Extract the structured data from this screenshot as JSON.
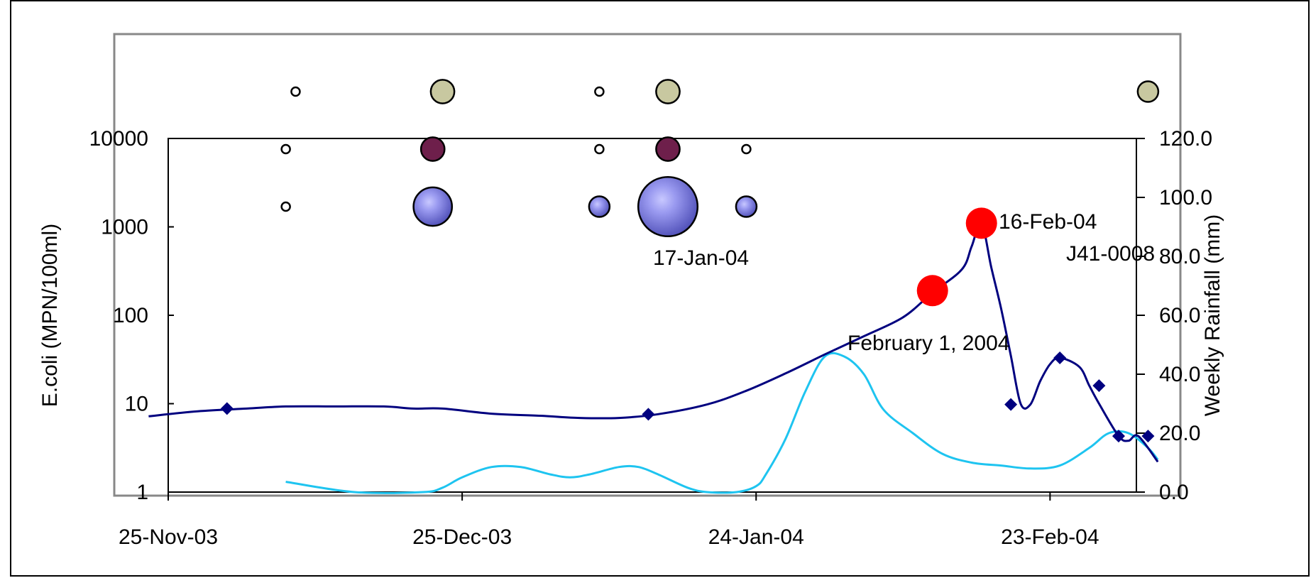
{
  "title": "",
  "chart_data": {
    "type": "line",
    "x_axis": {
      "tick_labels": [
        "25-Nov-03",
        "25-Dec-03",
        "24-Jan-04",
        "23-Feb-04"
      ],
      "range": [
        "2003-11-25",
        "2004-03-05"
      ]
    },
    "y_left": {
      "label": "E.coli (MPN/100ml)",
      "scale": "log",
      "range": [
        1,
        10000
      ],
      "tick_labels": [
        "1",
        "10",
        "100",
        "1000",
        "10000"
      ],
      "ticks": [
        1,
        10,
        100,
        1000,
        10000
      ]
    },
    "y_right": {
      "label": "Weekly Rainfall (mm)",
      "range": [
        0,
        120
      ],
      "tick_labels": [
        "0.0",
        "20.0",
        "40.0",
        "60.0",
        "80.0",
        "100.0",
        "120.0"
      ],
      "ticks": [
        0,
        20,
        40,
        60,
        80,
        100,
        120
      ]
    },
    "series": [
      {
        "name": "",
        "axis": "left",
        "color": "#00007f",
        "line": [
          [
            "2003-11-23",
            7.2
          ],
          [
            "2003-11-28",
            8.2
          ],
          [
            "2003-12-03",
            8.8
          ],
          [
            "2003-12-07",
            9.3
          ],
          [
            "2003-12-12",
            9.3
          ],
          [
            "2003-12-17",
            9.3
          ],
          [
            "2003-12-20",
            8.8
          ],
          [
            "2003-12-23",
            8.8
          ],
          [
            "2003-12-28",
            7.7
          ],
          [
            "2004-01-02",
            7.3
          ],
          [
            "2004-01-06",
            6.9
          ],
          [
            "2004-01-10",
            6.9
          ],
          [
            "2004-01-14",
            7.6
          ],
          [
            "2004-01-19",
            9.8
          ],
          [
            "2004-01-23",
            14
          ],
          [
            "2004-01-27",
            22
          ],
          [
            "2004-01-31",
            36
          ],
          [
            "2004-02-04",
            58
          ],
          [
            "2004-02-08",
            95
          ],
          [
            "2004-02-11",
            180
          ],
          [
            "2004-02-14",
            330
          ],
          [
            "2004-02-15",
            600
          ],
          [
            "2004-02-16",
            1100
          ],
          [
            "2004-02-17",
            350
          ],
          [
            "2004-02-18",
            120
          ],
          [
            "2004-02-19",
            35
          ],
          [
            "2004-02-20",
            10
          ],
          [
            "2004-02-21",
            9.8
          ],
          [
            "2004-02-22",
            18
          ],
          [
            "2004-02-23",
            28
          ],
          [
            "2004-02-24",
            33
          ],
          [
            "2004-02-26",
            26
          ],
          [
            "2004-02-27",
            16
          ],
          [
            "2004-02-28",
            10
          ],
          [
            "2004-03-01",
            4.3
          ],
          [
            "2004-03-02",
            3.8
          ],
          [
            "2004-03-03",
            4.3
          ],
          [
            "2004-03-05",
            2.2
          ]
        ],
        "markers": [
          [
            "2003-12-01",
            8.8
          ],
          [
            "2004-01-13",
            7.6
          ],
          [
            "2004-02-19",
            9.8
          ],
          [
            "2004-02-24",
            33
          ],
          [
            "2004-02-28",
            16
          ],
          [
            "2004-03-01",
            4.3
          ],
          [
            "2004-03-04",
            4.3
          ]
        ]
      },
      {
        "name": "",
        "axis": "right",
        "color": "#1ec4f0",
        "line": [
          [
            "2003-12-07",
            3.5
          ],
          [
            "2003-12-14",
            0
          ],
          [
            "2003-12-21",
            0
          ],
          [
            "2003-12-23",
            1.5
          ],
          [
            "2003-12-25",
            5
          ],
          [
            "2003-12-28",
            8.5
          ],
          [
            "2003-12-31",
            8.5
          ],
          [
            "2004-01-03",
            6
          ],
          [
            "2004-01-05",
            5
          ],
          [
            "2004-01-07",
            6
          ],
          [
            "2004-01-10",
            8.5
          ],
          [
            "2004-01-12",
            8.5
          ],
          [
            "2004-01-14",
            6
          ],
          [
            "2004-01-17",
            1.5
          ],
          [
            "2004-01-19",
            0
          ],
          [
            "2004-01-22",
            0
          ],
          [
            "2004-01-24",
            2
          ],
          [
            "2004-01-25",
            6
          ],
          [
            "2004-01-27",
            18
          ],
          [
            "2004-01-29",
            34
          ],
          [
            "2004-01-31",
            46
          ],
          [
            "2004-02-02",
            46
          ],
          [
            "2004-02-04",
            40
          ],
          [
            "2004-02-06",
            28
          ],
          [
            "2004-02-09",
            20
          ],
          [
            "2004-02-12",
            13
          ],
          [
            "2004-02-15",
            10
          ],
          [
            "2004-02-18",
            9
          ],
          [
            "2004-02-21",
            8
          ],
          [
            "2004-02-24",
            9
          ],
          [
            "2004-02-27",
            15
          ],
          [
            "2004-02-29",
            20
          ],
          [
            "2004-03-02",
            20
          ],
          [
            "2004-03-04",
            15
          ],
          [
            "2004-03-05",
            11
          ]
        ]
      }
    ],
    "highlight_points": [
      {
        "date": "2004-02-11",
        "value": 190,
        "color": "#ff0000"
      },
      {
        "date": "2004-02-16",
        "value": 1100,
        "color": "#ff0000"
      }
    ],
    "bubble_rows": [
      {
        "row": 1,
        "color": "#c8c8a0",
        "bubbles": [
          [
            "2003-12-08",
            1
          ],
          [
            "2003-12-23",
            3
          ],
          [
            "2004-01-08",
            1
          ],
          [
            "2004-01-15",
            3
          ],
          [
            "2004-03-04",
            2.5
          ]
        ]
      },
      {
        "row": 2,
        "color": "#6e1f4b",
        "bubbles": [
          [
            "2003-12-07",
            1
          ],
          [
            "2003-12-22",
            3
          ],
          [
            "2004-01-08",
            1
          ],
          [
            "2004-01-15",
            3
          ],
          [
            "2004-01-23",
            1
          ]
        ]
      },
      {
        "row": 3,
        "color": "#8888ee",
        "bubbles": [
          [
            "2003-12-07",
            1
          ],
          [
            "2003-12-22",
            5.5
          ],
          [
            "2004-01-08",
            2.5
          ],
          [
            "2004-01-15",
            9
          ],
          [
            "2004-01-23",
            2.5
          ]
        ]
      }
    ],
    "annotations": [
      "17-Jan-04",
      "16-Feb-04",
      "February 1, 2004",
      "J41-0008"
    ],
    "grid": false
  }
}
